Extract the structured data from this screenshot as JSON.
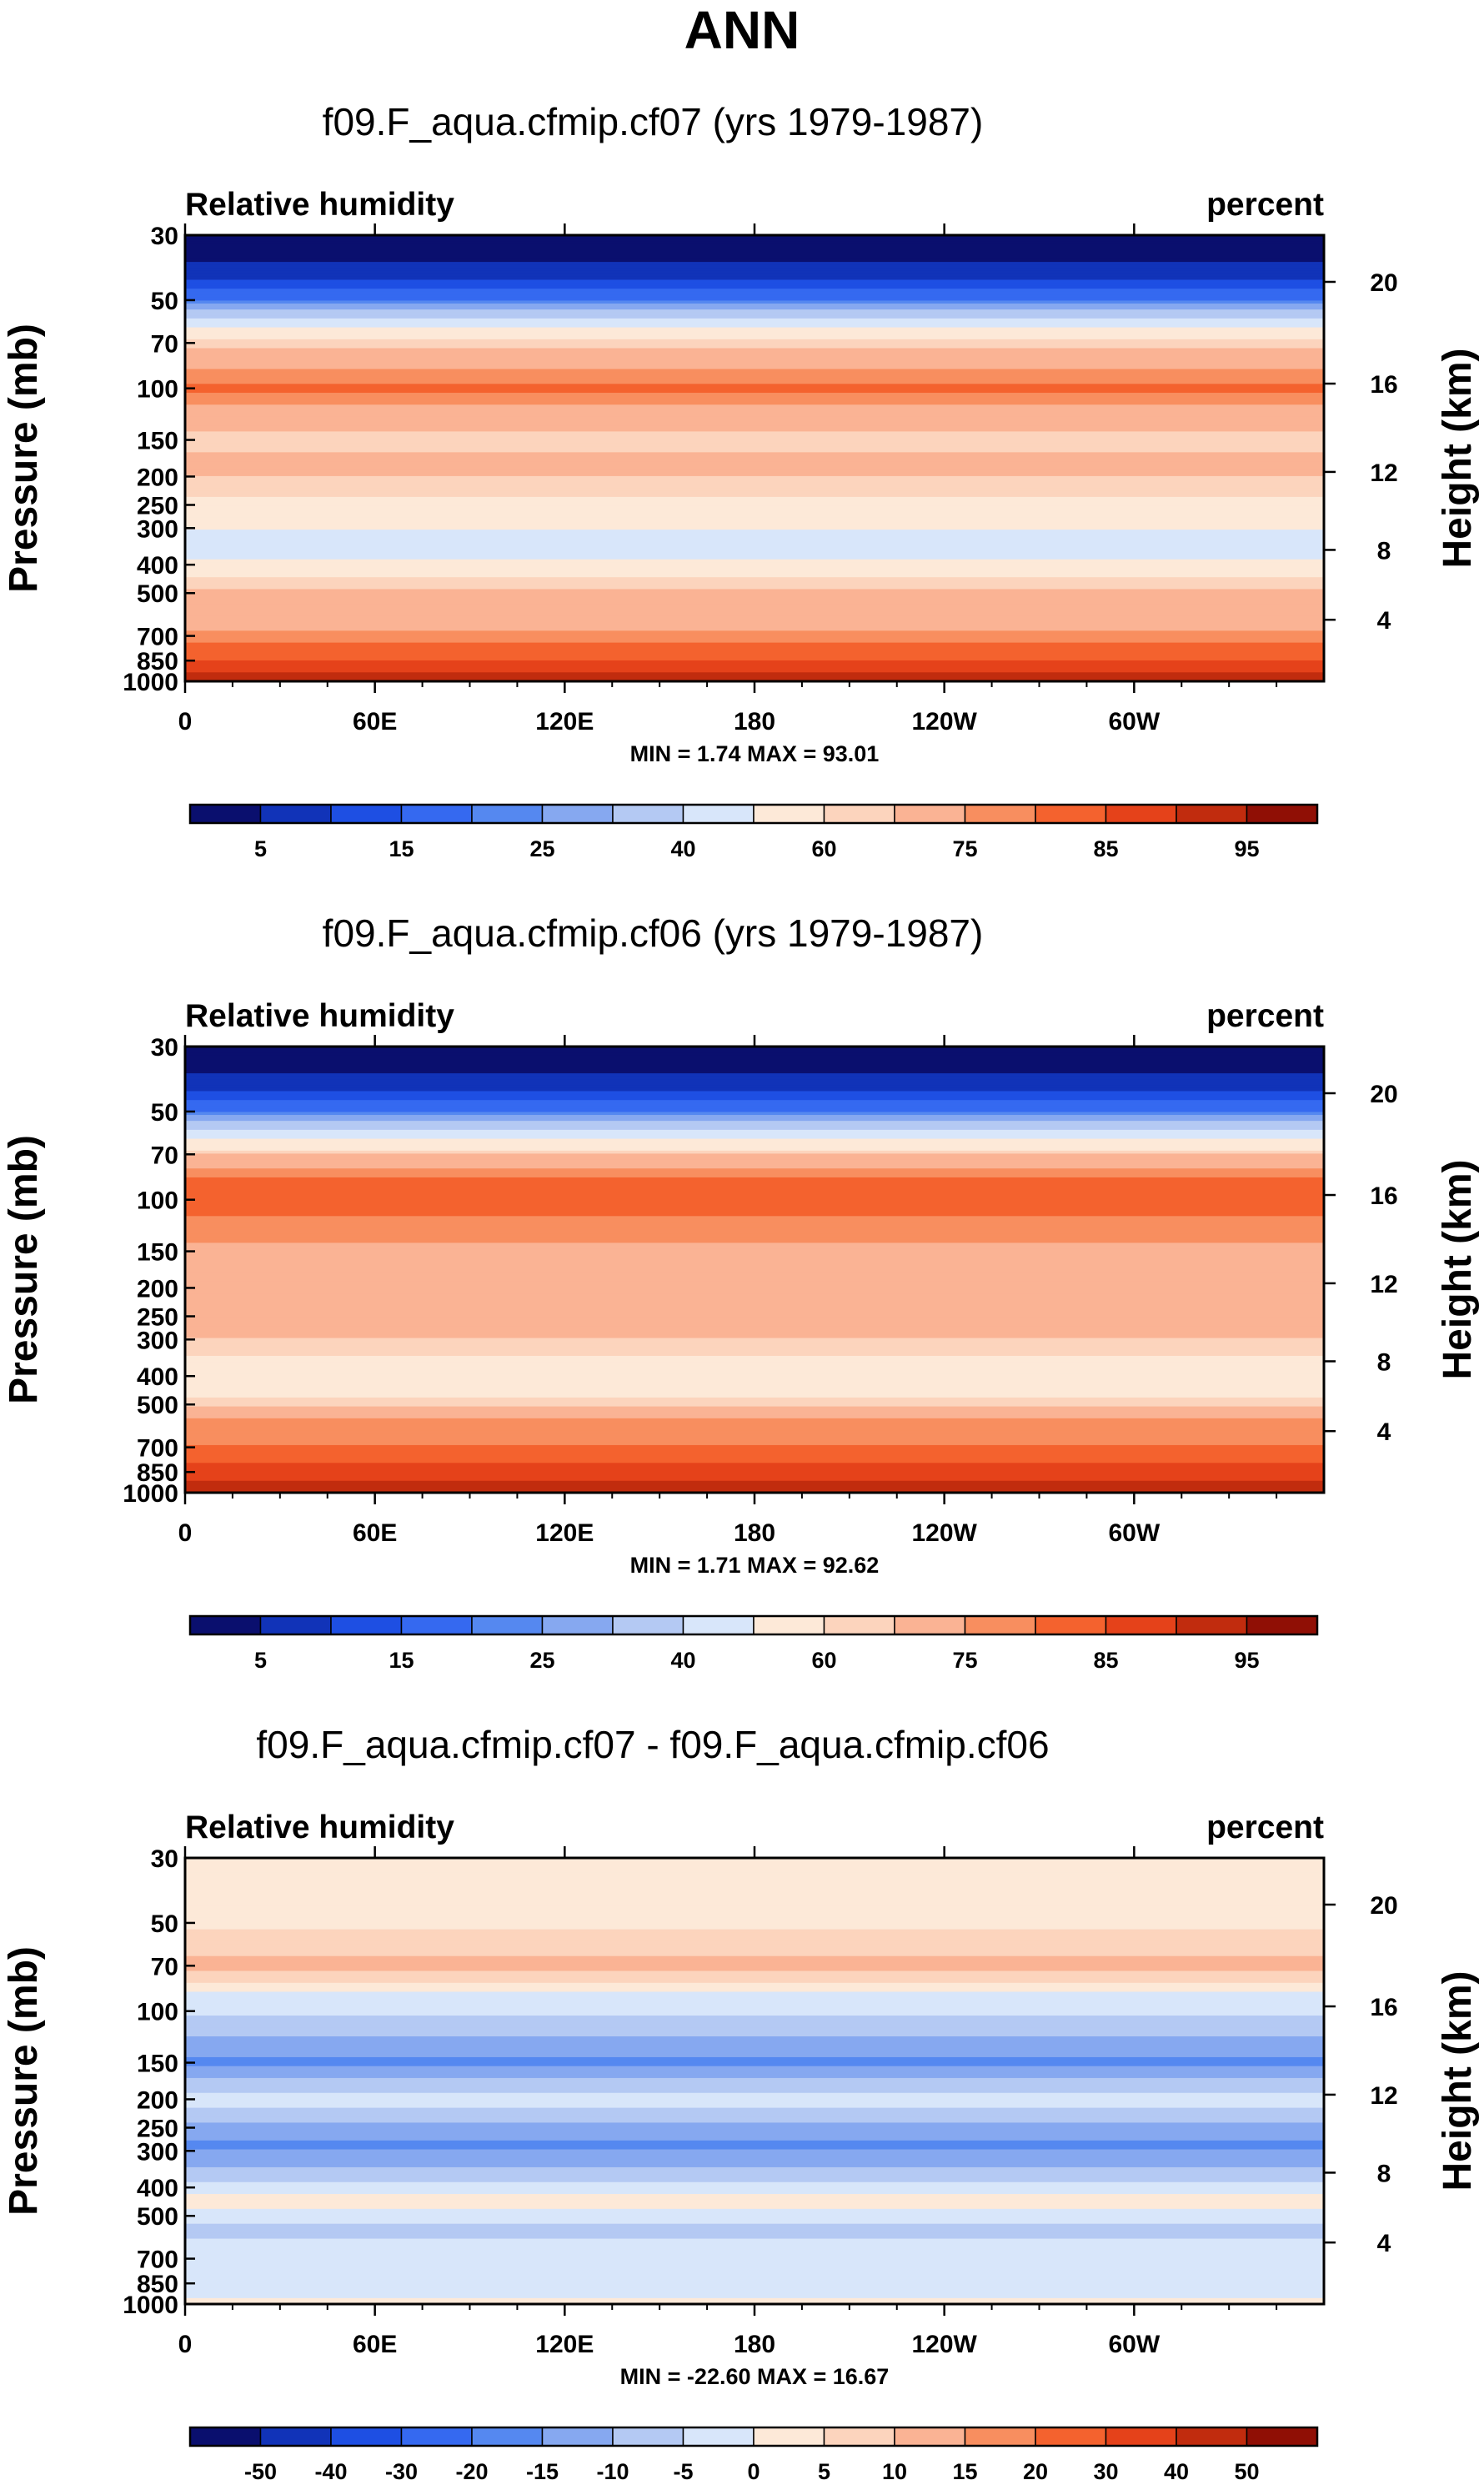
{
  "figure_title": "ANN",
  "chart_data": [
    {
      "type": "heatmap",
      "title": "f09.F_aqua.cfmip.cf07 (yrs 1979-1987)",
      "left_label": "Relative humidity",
      "right_label": "percent",
      "ylabel": "Pressure (mb)",
      "y2label": "Height (km)",
      "pressure_ticks": [
        "30",
        "50",
        "70",
        "100",
        "150",
        "200",
        "250",
        "300",
        "400",
        "500",
        "700",
        "850",
        "1000"
      ],
      "height_ticks": [
        "20",
        "16",
        "12",
        "8",
        "4"
      ],
      "longitude_ticks": [
        "0",
        "60E",
        "120E",
        "180",
        "120W",
        "60W"
      ],
      "xlim": [
        0,
        360
      ],
      "ylim": [
        1000,
        30
      ],
      "y_scale": "log",
      "min_max_text": "MIN =   1.74  MAX =  93.01",
      "min": 1.74,
      "max": 93.01,
      "colorbar_levels": [
        5,
        10,
        15,
        20,
        25,
        30,
        40,
        50,
        60,
        65,
        75,
        80,
        85,
        90,
        95
      ],
      "colorbar_labels": [
        "5",
        "15",
        "25",
        "40",
        "60",
        "75",
        "85",
        "95"
      ],
      "colorbar_colors": [
        "#0a0f6e",
        "#1133b8",
        "#1e4fe3",
        "#3569f0",
        "#5588f0",
        "#86a8f0",
        "#b4c9f3",
        "#d8e6fa",
        "#fde9d8",
        "#fcd4bd",
        "#fab394",
        "#f88e5f",
        "#f4622e",
        "#e5421a",
        "#c12c0e",
        "#900f05"
      ],
      "profile": [
        {
          "p": 30,
          "v": 2
        },
        {
          "p": 40,
          "v": 6
        },
        {
          "p": 50,
          "v": 20
        },
        {
          "p": 60,
          "v": 45
        },
        {
          "p": 70,
          "v": 63
        },
        {
          "p": 80,
          "v": 72
        },
        {
          "p": 90,
          "v": 77
        },
        {
          "p": 100,
          "v": 82
        },
        {
          "p": 115,
          "v": 75
        },
        {
          "p": 130,
          "v": 68
        },
        {
          "p": 150,
          "v": 62
        },
        {
          "p": 175,
          "v": 67
        },
        {
          "p": 200,
          "v": 65
        },
        {
          "p": 230,
          "v": 61
        },
        {
          "p": 260,
          "v": 57
        },
        {
          "p": 290,
          "v": 52
        },
        {
          "p": 320,
          "v": 48
        },
        {
          "p": 360,
          "v": 47
        },
        {
          "p": 400,
          "v": 53
        },
        {
          "p": 450,
          "v": 62
        },
        {
          "p": 500,
          "v": 66
        },
        {
          "p": 560,
          "v": 72
        },
        {
          "p": 650,
          "v": 72
        },
        {
          "p": 720,
          "v": 79
        },
        {
          "p": 800,
          "v": 83
        },
        {
          "p": 860,
          "v": 86
        },
        {
          "p": 930,
          "v": 90
        },
        {
          "p": 1000,
          "v": 91
        }
      ]
    },
    {
      "type": "heatmap",
      "title": "f09.F_aqua.cfmip.cf06 (yrs 1979-1987)",
      "left_label": "Relative humidity",
      "right_label": "percent",
      "ylabel": "Pressure (mb)",
      "y2label": "Height (km)",
      "pressure_ticks": [
        "30",
        "50",
        "70",
        "100",
        "150",
        "200",
        "250",
        "300",
        "400",
        "500",
        "700",
        "850",
        "1000"
      ],
      "height_ticks": [
        "20",
        "16",
        "12",
        "8",
        "4"
      ],
      "longitude_ticks": [
        "0",
        "60E",
        "120E",
        "180",
        "120W",
        "60W"
      ],
      "xlim": [
        0,
        360
      ],
      "ylim": [
        1000,
        30
      ],
      "y_scale": "log",
      "min_max_text": "MIN =   1.71  MAX =  92.62",
      "min": 1.71,
      "max": 92.62,
      "colorbar_levels": [
        5,
        10,
        15,
        20,
        25,
        30,
        40,
        50,
        60,
        65,
        75,
        80,
        85,
        90,
        95
      ],
      "colorbar_labels": [
        "5",
        "15",
        "25",
        "40",
        "60",
        "75",
        "85",
        "95"
      ],
      "colorbar_colors": [
        "#0a0f6e",
        "#1133b8",
        "#1e4fe3",
        "#3569f0",
        "#5588f0",
        "#86a8f0",
        "#b4c9f3",
        "#d8e6fa",
        "#fde9d8",
        "#fcd4bd",
        "#fab394",
        "#f88e5f",
        "#f4622e",
        "#e5421a",
        "#c12c0e",
        "#900f05"
      ],
      "profile": [
        {
          "p": 30,
          "v": 2
        },
        {
          "p": 40,
          "v": 6
        },
        {
          "p": 50,
          "v": 20
        },
        {
          "p": 60,
          "v": 45
        },
        {
          "p": 70,
          "v": 65
        },
        {
          "p": 80,
          "v": 78
        },
        {
          "p": 90,
          "v": 83
        },
        {
          "p": 100,
          "v": 82
        },
        {
          "p": 115,
          "v": 80
        },
        {
          "p": 130,
          "v": 77
        },
        {
          "p": 150,
          "v": 73
        },
        {
          "p": 175,
          "v": 70
        },
        {
          "p": 200,
          "v": 68
        },
        {
          "p": 230,
          "v": 66
        },
        {
          "p": 260,
          "v": 70
        },
        {
          "p": 290,
          "v": 66
        },
        {
          "p": 320,
          "v": 62
        },
        {
          "p": 360,
          "v": 58
        },
        {
          "p": 400,
          "v": 57
        },
        {
          "p": 450,
          "v": 58
        },
        {
          "p": 500,
          "v": 63
        },
        {
          "p": 560,
          "v": 77
        },
        {
          "p": 650,
          "v": 77
        },
        {
          "p": 720,
          "v": 82
        },
        {
          "p": 800,
          "v": 85
        },
        {
          "p": 860,
          "v": 88
        },
        {
          "p": 930,
          "v": 91
        },
        {
          "p": 1000,
          "v": 91
        }
      ]
    },
    {
      "type": "heatmap",
      "title": "f09.F_aqua.cfmip.cf07 - f09.F_aqua.cfmip.cf06",
      "left_label": "Relative humidity",
      "right_label": "percent",
      "ylabel": "Pressure (mb)",
      "y2label": "Height (km)",
      "pressure_ticks": [
        "30",
        "50",
        "70",
        "100",
        "150",
        "200",
        "250",
        "300",
        "400",
        "500",
        "700",
        "850",
        "1000"
      ],
      "height_ticks": [
        "20",
        "16",
        "12",
        "8",
        "4"
      ],
      "longitude_ticks": [
        "0",
        "60E",
        "120E",
        "180",
        "120W",
        "60W"
      ],
      "xlim": [
        0,
        360
      ],
      "ylim": [
        1000,
        30
      ],
      "y_scale": "log",
      "min_max_text": "MIN = -22.60  MAX =  16.67",
      "min": -22.6,
      "max": 16.67,
      "colorbar_levels": [
        -50,
        -40,
        -30,
        -20,
        -15,
        -10,
        -5,
        0,
        5,
        10,
        15,
        20,
        30,
        40,
        50
      ],
      "colorbar_labels": [
        "-50",
        "-40",
        "-30",
        "-20",
        "-15",
        "-10",
        "-5",
        "0",
        "5",
        "10",
        "15",
        "20",
        "30",
        "40",
        "50"
      ],
      "colorbar_colors": [
        "#0a0f6e",
        "#1133b8",
        "#1e4fe3",
        "#3569f0",
        "#5588f0",
        "#86a8f0",
        "#b4c9f3",
        "#d8e6fa",
        "#fde9d8",
        "#fcd4bd",
        "#fab394",
        "#f88e5f",
        "#f4622e",
        "#e5421a",
        "#c12c0e",
        "#900f05"
      ],
      "profile": [
        {
          "p": 30,
          "v": 1
        },
        {
          "p": 40,
          "v": 2
        },
        {
          "p": 50,
          "v": 4
        },
        {
          "p": 60,
          "v": 8
        },
        {
          "p": 70,
          "v": 12
        },
        {
          "p": 80,
          "v": 5
        },
        {
          "p": 90,
          "v": -3
        },
        {
          "p": 100,
          "v": -4
        },
        {
          "p": 115,
          "v": -8
        },
        {
          "p": 130,
          "v": -12
        },
        {
          "p": 150,
          "v": -16
        },
        {
          "p": 175,
          "v": -9
        },
        {
          "p": 200,
          "v": -3
        },
        {
          "p": 230,
          "v": -8
        },
        {
          "p": 260,
          "v": -14
        },
        {
          "p": 290,
          "v": -16
        },
        {
          "p": 320,
          "v": -13
        },
        {
          "p": 360,
          "v": -7
        },
        {
          "p": 400,
          "v": -3
        },
        {
          "p": 450,
          "v": 3
        },
        {
          "p": 500,
          "v": -3
        },
        {
          "p": 560,
          "v": -7
        },
        {
          "p": 650,
          "v": -3
        },
        {
          "p": 720,
          "v": -3
        },
        {
          "p": 800,
          "v": -3
        },
        {
          "p": 860,
          "v": -3
        },
        {
          "p": 930,
          "v": -2
        },
        {
          "p": 1000,
          "v": 2
        }
      ]
    }
  ]
}
